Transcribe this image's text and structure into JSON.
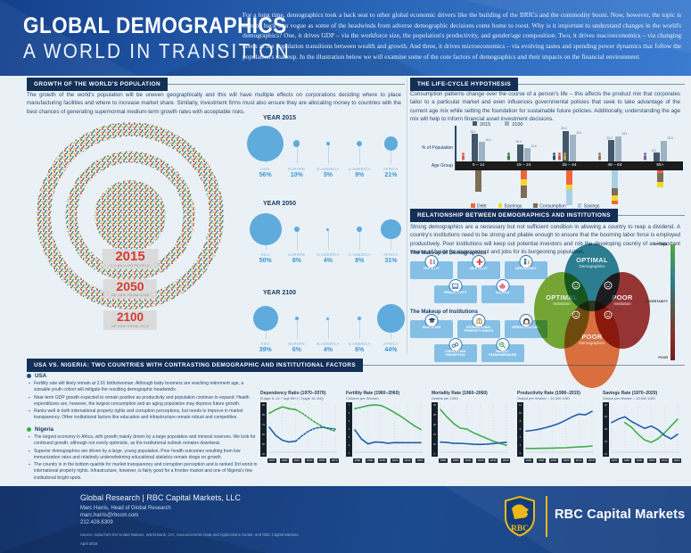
{
  "header": {
    "title_line1": "GLOBAL DEMOGRAPHICS",
    "title_line2": "A WORLD IN TRANSITION",
    "intro": "For a long time, demographics took a back seat to other global economic drivers like the building of the BRICs and the commodity boom. Now, however, the topic is coming back into vogue as some of the headwinds from adverse demographic decisions come home to roost. Why is it important to understand changes in the world's demographics? One, it drives GDP – via the workforce size, the population's productivity, and gender/age composition. Two, it drives macroeconomics – via changing needs as the population transitions between wealth and growth. And three, it drives microeconomics – via evolving tastes and spending power dynamics that follow the population's makeup. In the illustration below we will examine some of the core factors of demographics and their impacts on the financial environment."
  },
  "growth": {
    "title": "GROWTH OF THE WORLD'S POPULATION",
    "body": "The growth of the world's population will be uneven geographically and this will have multiple effects on corporations deciding where to place manufacturing facilities and where to increase market share. Similarly, investment firms must also ensure they are allocating money to countries with the best chances of generating supernormal medium-term growth rates with acceptable risks.",
    "rings": [
      {
        "year": "2015",
        "sub": "7.4 BILLION PEOPLE"
      },
      {
        "year": "2050",
        "sub": "UP 28% FROM 2015"
      },
      {
        "year": "2100",
        "sub": "UP 53% FROM 2015"
      }
    ]
  },
  "lifecycle": {
    "title": "THE LIFE-CYCLE HYPOTHESIS",
    "body": "Consumption patterns change over the course of a person's life – this affects the product mix that corporates tailor to a particular market and even influences governmental policies that seek to take advantage of the current age mix while setting the foundation for sustainable future policies. Additionally, understanding the age mix will help to inform financial asset investment decisions."
  },
  "institutions": {
    "title": "RELATIONSHIP BETWEEN DEMOGRAPHICS AND INSTITUTIONS",
    "body": "Strong demographics are a necessary but not sufficient condition in allowing a country to reap a dividend. A country's institutions need to be strong and pliable enough to ensure that the booming labor force is employed productively. Poor institutions will keep out potential investors and rob the developing country of an important source of funds for improvement and jobs for its burgeoning population.",
    "demographics_heading": "The Makeup of Demographics",
    "demographics_items": [
      "FERTILITY",
      "MORTALITY",
      "DEPENDENCY",
      "PRODUCTIVITY",
      "SAVINGS"
    ],
    "demographics_icons": [
      "fertility-icon",
      "mortality-icon",
      "dependency-icon",
      "productivity-icon",
      "savings-icon"
    ],
    "institutions_heading": "The Makeup of Institutions",
    "institutions_items": [
      "EDUCATION",
      "INTERNATIONAL PROPERTY RIGHTS",
      "INFRASTRUCTURE",
      "CORRUPTION PERCEPTION",
      "MARKET TRANSPARENCIES"
    ],
    "institutions_icons": [
      "education-icon",
      "property-rights-icon",
      "infrastructure-icon",
      "corruption-icon",
      "transparency-icon"
    ],
    "venn": {
      "top": [
        "OPTIMAL",
        "Demographics"
      ],
      "left": [
        "OPTIMAL",
        "Institution"
      ],
      "right": [
        "POOR",
        "Institution"
      ],
      "bottom": [
        "POOR",
        "Demographics"
      ]
    },
    "scale": [
      "OPTIMAL",
      "UNCERTAINTY",
      "POOR"
    ]
  },
  "usa_nigeria": {
    "title": "USA VS. NIGERIA: TWO COUNTRIES WITH CONTRASTING DEMOGRAPHIC AND INSTITUTIONAL FACTORS",
    "usa": {
      "label": "USA",
      "bullets": [
        "Fertility rate will likely remain at 2.01 births/woman. Although baby boomers are reaching retirement age, a sizeable youth cohort will mitigate the resulting demographic headwinds.",
        "Near-term GDP growth expected to remain positive as productivity and population continue to expand. Health expenditures are, however, the largest consumption and an aging population may depress future growth.",
        "Ranks well in both international property rights and corruption perceptions, but needs to improve in market transparency. Other institutional factors like education and infrastructure remain robust and competitive."
      ]
    },
    "nigeria": {
      "label": "Nigeria",
      "bullets": [
        "The largest economy in Africa, with growth mainly driven by a large population and mineral reserves. We look for continued growth, although not overly optimistic, as the institutional outlook remains downbeat.",
        "Superior demographics are driven by a large, young population. Poor health outcomes resulting from low immunization rates and relatively underwhelming educational statistics remain drags on growth.",
        "The country is in the bottom quartile for market transparency and corruption perception and is ranked 3rd worst in international property rights. Infrastructure, however, is fairly good for a frontier market and one of Nigeria's few institutional bright spots."
      ]
    }
  },
  "footer": {
    "org": "Global Research  |  RBC Capital Markets, LLC",
    "contact_name": "Marc Harris, Head of Global Research",
    "email": "marc.harris@rbccm.com",
    "phone": "212.428.6309",
    "source": "Source: Data from the United Nations, World Bank, CIA, Socioeconomic Data and Applications Center, and RBC Capital Markets.",
    "date": "April 2016",
    "brand": "RBC Capital Markets",
    "logo_text": "RBC"
  },
  "colors": {
    "accent_blue": "#3f97d1",
    "navy": "#1d3c63",
    "usa_line": "#1f5fa9",
    "nigeria_line": "#3fae49",
    "debt": "#f0663c",
    "earnings": "#f2d829",
    "consumption": "#7d6c57",
    "savings": "#a9cfe5",
    "bar_2015": "#44576a",
    "bar_2100": "#9db3c4",
    "venn_top": "#2f8494",
    "venn_left": "#7fae35",
    "venn_right": "#a23835",
    "venn_bottom": "#ee7540",
    "usa_dot": "#1f4e8c",
    "nigeria_dot": "#3fae49",
    "gold": "#ecb81c",
    "label_red": "#d63a2f"
  },
  "chart_data": [
    {
      "id": "population_share_by_continent",
      "type": "bubble",
      "unit": "%",
      "categories": [
        "ASIA",
        "EUROPE",
        "N.AMERICA",
        "S.AMERICA",
        "AFRICA"
      ],
      "groups": [
        {
          "year": "YEAR 2015",
          "values": [
            56,
            10,
            5,
            9,
            21
          ]
        },
        {
          "year": "YEAR 2050",
          "values": [
            50,
            8,
            4,
            8,
            31
          ]
        },
        {
          "year": "YEAR 2100",
          "values": [
            39,
            6,
            4,
            6,
            44
          ]
        }
      ]
    },
    {
      "id": "lifecycle_age_mix",
      "type": "bar",
      "title": "THE LIFE-CYCLE HYPOTHESIS",
      "ylabel": "% of Population",
      "xlabel": "Age Group",
      "categories": [
        "0 – 14",
        "15 – 24",
        "25 – 44",
        "45 – 64",
        "65+"
      ],
      "series": [
        {
          "name": "2015",
          "values": [
            26.1,
            16.2,
            29.2,
            20.2,
            8.3
          ]
        },
        {
          "name": "2100",
          "values": [
            18.4,
            12.6,
            25.1,
            24.1,
            19.9
          ]
        }
      ],
      "flow_legend": [
        "Debt",
        "Earnings",
        "Consumption",
        "Savings"
      ],
      "flows": [
        [
          [
            "Consumption",
            24
          ]
        ],
        [
          [
            "Debt",
            10
          ],
          [
            "Earnings",
            7
          ],
          [
            "Consumption",
            14
          ]
        ],
        [
          [
            "Debt",
            16
          ],
          [
            "Earnings",
            5
          ],
          [
            "Savings",
            18
          ]
        ],
        [
          [
            "Savings",
            20
          ],
          [
            "Consumption",
            8
          ],
          [
            "Earnings",
            6
          ],
          [
            "Debt",
            4
          ]
        ],
        [
          [
            "Debt",
            3
          ],
          [
            "Consumption",
            10
          ],
          [
            "Earnings",
            6
          ]
        ]
      ],
      "figures": [
        "infant-icon",
        "youth-icon",
        "family-icon",
        "adult-icon",
        "senior-wheelchair-icon"
      ]
    },
    {
      "id": "dependency_ratio",
      "type": "line",
      "title": "Dependency Ratio (1970–2070)",
      "subtitle": "[Σ(age 0–14 + age 65+) / Σ(age 15–64)]",
      "yticks": [
        90,
        80,
        70,
        60,
        50,
        40
      ],
      "ylim": [
        40,
        90
      ],
      "xticks": [
        "1970",
        "1990",
        "2010",
        "2030",
        "2050",
        "2070"
      ],
      "x": [
        1970,
        1980,
        1990,
        2000,
        2010,
        2020,
        2030,
        2040,
        2050,
        2060,
        2070
      ],
      "dash_from_index": 4,
      "series": [
        {
          "name": "Nigeria",
          "key": "nigeria",
          "values": [
            80,
            84,
            87,
            85,
            84,
            80,
            75,
            70,
            66,
            63,
            61
          ]
        },
        {
          "name": "USA",
          "key": "usa",
          "values": [
            65,
            56,
            51,
            49,
            50,
            56,
            61,
            64,
            65,
            64,
            63
          ]
        }
      ]
    },
    {
      "id": "fertility_rate",
      "type": "line",
      "title": "Fertility Rate (1960–2060)",
      "subtitle": "Children per Woman",
      "yticks": [
        7,
        6,
        5,
        4,
        3,
        2,
        1
      ],
      "ylim": [
        1,
        7
      ],
      "xticks": [
        "1960",
        "1980",
        "2000",
        "2020",
        "2040",
        "2060"
      ],
      "x": [
        1960,
        1970,
        1980,
        1990,
        2000,
        2010,
        2020,
        2030,
        2040,
        2050,
        2060
      ],
      "series": [
        {
          "name": "Nigeria",
          "key": "nigeria",
          "values": [
            6.4,
            6.6,
            6.8,
            6.9,
            6.8,
            6.4,
            5.9,
            5.4,
            4.8,
            4.2,
            3.7
          ]
        },
        {
          "name": "USA",
          "key": "usa",
          "values": [
            3.65,
            2.48,
            1.84,
            2.08,
            2.06,
            1.93,
            2.01,
            2.0,
            2.0,
            2.0,
            2.0
          ]
        }
      ]
    },
    {
      "id": "mortality_rate",
      "type": "line",
      "title": "Mortality Rate (1960–2060)",
      "subtitle": "Deaths per 1000",
      "yticks": [
        30,
        25,
        20,
        15,
        10,
        5
      ],
      "ylim": [
        5,
        30
      ],
      "xticks": [
        "1960",
        "1980",
        "2000",
        "2020",
        "2040",
        "2060"
      ],
      "x": [
        1960,
        1970,
        1980,
        1990,
        2000,
        2010,
        2020,
        2030,
        2040,
        2050,
        2060
      ],
      "series": [
        {
          "name": "Nigeria",
          "key": "nigeria",
          "values": [
            27,
            23,
            19.5,
            17,
            16.5,
            14.5,
            13,
            11.5,
            10,
            8.8,
            7.8
          ]
        },
        {
          "name": "USA",
          "key": "usa",
          "values": [
            9.5,
            9.3,
            8.8,
            8.8,
            8.6,
            8.3,
            8.2,
            8.4,
            8.7,
            9.1,
            9.4
          ]
        }
      ]
    },
    {
      "id": "productivity_rate",
      "type": "line",
      "title": "Productivity Rate (1990–2015)",
      "subtitle": "Output per Worker – 10,000 USD",
      "yticks": [
        12,
        10,
        8,
        6,
        4,
        2,
        0
      ],
      "ylim": [
        0,
        12
      ],
      "xticks": [
        "1990",
        "1995",
        "2000",
        "2005",
        "2010",
        "2015"
      ],
      "x": [
        1990,
        1992.5,
        1995,
        1997.5,
        2000,
        2002.5,
        2005,
        2007.5,
        2010,
        2012.5,
        2015
      ],
      "series": [
        {
          "name": "Nigeria",
          "key": "nigeria",
          "values": [
            0.5,
            0.5,
            0.52,
            0.55,
            0.6,
            0.65,
            0.7,
            0.8,
            0.9,
            1.0,
            1.15
          ]
        },
        {
          "name": "USA",
          "key": "usa",
          "values": [
            5.0,
            5.2,
            5.5,
            5.9,
            6.4,
            7.0,
            7.8,
            8.7,
            9.4,
            9.2,
            10.1
          ]
        }
      ]
    },
    {
      "id": "savings_rate",
      "type": "line",
      "title": "Savings Rate (1970–2020)",
      "subtitle": "Output per Worker – 10,000 USD",
      "yticks": [
        30,
        25,
        20,
        15,
        10
      ],
      "ylim": [
        10,
        30
      ],
      "xticks": [
        "1970",
        "1980",
        "1990",
        "2000",
        "2010",
        "2020"
      ],
      "x": [
        1970,
        1975,
        1980,
        1985,
        1990,
        1995,
        2000,
        2005,
        2010,
        2015,
        2020
      ],
      "series": [
        {
          "name": "Nigeria",
          "key": "nigeria",
          "values": [
            null,
            null,
            22,
            20,
            17,
            14.5,
            13.5,
            15,
            17.5,
            20.5,
            23.5
          ]
        },
        {
          "name": "USA",
          "key": "usa",
          "values": [
            22,
            23.5,
            24.5,
            22.5,
            21,
            19.5,
            20.5,
            19,
            16.5,
            15,
            17
          ]
        }
      ]
    }
  ]
}
